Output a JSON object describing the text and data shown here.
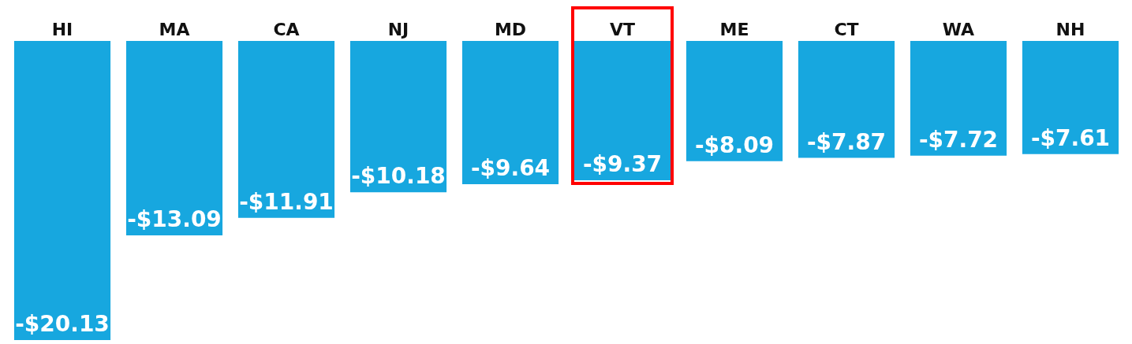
{
  "chart_data": {
    "type": "bar",
    "categories": [
      "HI",
      "MA",
      "CA",
      "NJ",
      "MD",
      "VT",
      "ME",
      "CT",
      "WA",
      "NH"
    ],
    "values": [
      -20.13,
      -13.09,
      -11.91,
      -10.18,
      -9.64,
      -9.37,
      -8.09,
      -7.87,
      -7.72,
      -7.61
    ],
    "value_labels": [
      "-$20.13",
      "-$13.09",
      "-$11.91",
      "-$10.18",
      "-$9.64",
      "-$9.37",
      "-$8.09",
      "-$7.87",
      "-$7.72",
      "-$7.61"
    ],
    "color": "#17a7df",
    "grid": false
  }
}
